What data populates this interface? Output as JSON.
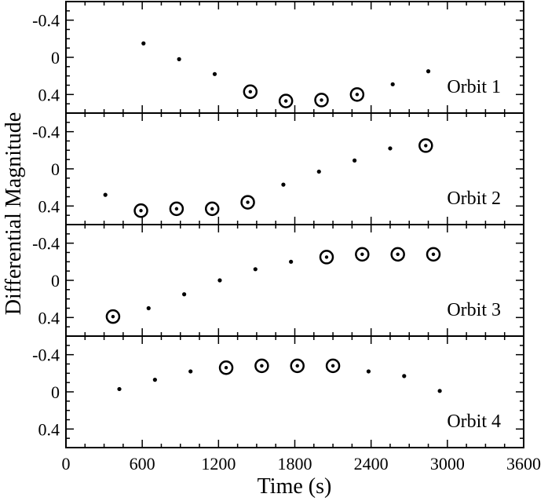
{
  "chart_data": {
    "type": "scatter",
    "xlabel": "Time (s)",
    "ylabel": "Differential Magnitude",
    "xlim": [
      0,
      3600
    ],
    "ylim": [
      0.6,
      -0.6
    ],
    "y_reversed": true,
    "x_ticks": [
      0,
      600,
      1200,
      1800,
      2400,
      3000,
      3600
    ],
    "x_tick_labels": [
      "0",
      "600",
      "1200",
      "1800",
      "2400",
      "3000",
      "3600"
    ],
    "y_ticks": [
      -0.4,
      0,
      0.4
    ],
    "y_tick_labels": [
      "-0.4",
      "0",
      "0.4"
    ],
    "grid": false,
    "panels": [
      {
        "label": "Orbit 1",
        "points": [
          {
            "x": 610,
            "y": -0.15,
            "marker": "dot"
          },
          {
            "x": 890,
            "y": 0.02,
            "marker": "dot"
          },
          {
            "x": 1170,
            "y": 0.18,
            "marker": "dot"
          },
          {
            "x": 1450,
            "y": 0.37,
            "marker": "circled"
          },
          {
            "x": 1730,
            "y": 0.47,
            "marker": "circled"
          },
          {
            "x": 2010,
            "y": 0.46,
            "marker": "circled"
          },
          {
            "x": 2290,
            "y": 0.4,
            "marker": "circled"
          },
          {
            "x": 2570,
            "y": 0.29,
            "marker": "dot"
          },
          {
            "x": 2850,
            "y": 0.15,
            "marker": "dot"
          }
        ]
      },
      {
        "label": "Orbit 2",
        "points": [
          {
            "x": 310,
            "y": 0.28,
            "marker": "dot"
          },
          {
            "x": 590,
            "y": 0.45,
            "marker": "circled"
          },
          {
            "x": 870,
            "y": 0.43,
            "marker": "circled"
          },
          {
            "x": 1150,
            "y": 0.43,
            "marker": "circled"
          },
          {
            "x": 1430,
            "y": 0.36,
            "marker": "circled"
          },
          {
            "x": 1710,
            "y": 0.17,
            "marker": "dot"
          },
          {
            "x": 1990,
            "y": 0.03,
            "marker": "dot"
          },
          {
            "x": 2270,
            "y": -0.09,
            "marker": "dot"
          },
          {
            "x": 2550,
            "y": -0.22,
            "marker": "dot"
          },
          {
            "x": 2830,
            "y": -0.25,
            "marker": "circled"
          }
        ]
      },
      {
        "label": "Orbit 3",
        "points": [
          {
            "x": 370,
            "y": 0.39,
            "marker": "circled"
          },
          {
            "x": 650,
            "y": 0.3,
            "marker": "dot"
          },
          {
            "x": 930,
            "y": 0.15,
            "marker": "dot"
          },
          {
            "x": 1210,
            "y": 0.0,
            "marker": "dot"
          },
          {
            "x": 1490,
            "y": -0.12,
            "marker": "dot"
          },
          {
            "x": 1770,
            "y": -0.2,
            "marker": "dot"
          },
          {
            "x": 2050,
            "y": -0.25,
            "marker": "circled"
          },
          {
            "x": 2330,
            "y": -0.28,
            "marker": "circled"
          },
          {
            "x": 2610,
            "y": -0.28,
            "marker": "circled"
          },
          {
            "x": 2890,
            "y": -0.28,
            "marker": "circled"
          }
        ]
      },
      {
        "label": "Orbit 4",
        "points": [
          {
            "x": 420,
            "y": -0.03,
            "marker": "dot"
          },
          {
            "x": 700,
            "y": -0.13,
            "marker": "dot"
          },
          {
            "x": 980,
            "y": -0.22,
            "marker": "dot"
          },
          {
            "x": 1260,
            "y": -0.26,
            "marker": "circled"
          },
          {
            "x": 1540,
            "y": -0.28,
            "marker": "circled"
          },
          {
            "x": 1820,
            "y": -0.28,
            "marker": "circled"
          },
          {
            "x": 2100,
            "y": -0.28,
            "marker": "circled"
          },
          {
            "x": 2380,
            "y": -0.22,
            "marker": "dot"
          },
          {
            "x": 2660,
            "y": -0.17,
            "marker": "dot"
          },
          {
            "x": 2940,
            "y": -0.01,
            "marker": "dot"
          }
        ]
      }
    ]
  }
}
